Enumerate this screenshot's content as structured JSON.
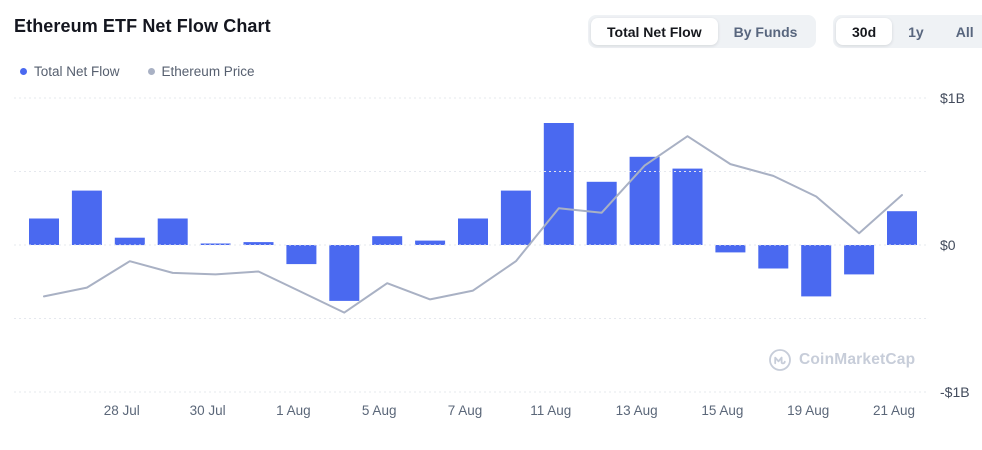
{
  "header": {
    "title": "Ethereum ETF Net Flow Chart",
    "view_toggle": {
      "options": [
        "Total Net Flow",
        "By Funds"
      ],
      "selected": "Total Net Flow"
    },
    "range_toggle": {
      "options": [
        "30d",
        "1y",
        "All"
      ],
      "selected": "30d"
    }
  },
  "legend": [
    {
      "label": "Total Net Flow",
      "color": "#4A69F0"
    },
    {
      "label": "Ethereum Price",
      "color": "#A9B1C4"
    }
  ],
  "watermark": {
    "text": "CoinMarketCap",
    "logo": "coinmarketcap-m-circle",
    "color": "#C7CDD9"
  },
  "chart_data": {
    "type": "bar",
    "title": "Ethereum ETF Net Flow Chart",
    "bars_count": 21,
    "series": [
      {
        "name": "Total Net Flow",
        "type": "bar",
        "color": "#4A69F0",
        "unit": "$B",
        "values": [
          0.18,
          0.37,
          0.05,
          0.18,
          0.01,
          0.02,
          -0.13,
          -0.38,
          0.06,
          0.03,
          0.18,
          0.37,
          0.83,
          0.43,
          0.6,
          0.52,
          -0.05,
          -0.16,
          -0.35,
          -0.2,
          0.23
        ]
      },
      {
        "name": "Ethereum Price",
        "type": "line",
        "color": "#A9B1C4",
        "axis": "hidden-overlay",
        "values_on_flow_axis": [
          -0.35,
          -0.29,
          -0.11,
          -0.19,
          -0.2,
          -0.18,
          -0.32,
          -0.46,
          -0.26,
          -0.37,
          -0.31,
          -0.11,
          0.25,
          0.22,
          0.54,
          0.74,
          0.55,
          0.47,
          0.33,
          0.08,
          0.34
        ]
      }
    ],
    "x_tick_labels": [
      "28 Jul",
      "30 Jul",
      "1 Aug",
      "5 Aug",
      "7 Aug",
      "11 Aug",
      "13 Aug",
      "15 Aug",
      "19 Aug",
      "21 Aug"
    ],
    "x_tick_bar_indices": [
      2,
      4,
      6,
      8,
      10,
      12,
      14,
      16,
      18,
      20
    ],
    "y_axis": {
      "side": "right",
      "labels": [
        "$1B",
        "$0",
        "-$1B"
      ],
      "label_values": [
        1,
        0,
        -1
      ],
      "gridline_values": [
        1,
        0.5,
        0,
        -0.5,
        -1
      ],
      "range": [
        -1,
        1
      ]
    },
    "grid": "dotted-horizontal",
    "legend_position": "top-left",
    "colors": {
      "grid": "#E5E8EE",
      "x_tick_text": "#5B6779",
      "y_tick_text": "#434C5D"
    }
  }
}
